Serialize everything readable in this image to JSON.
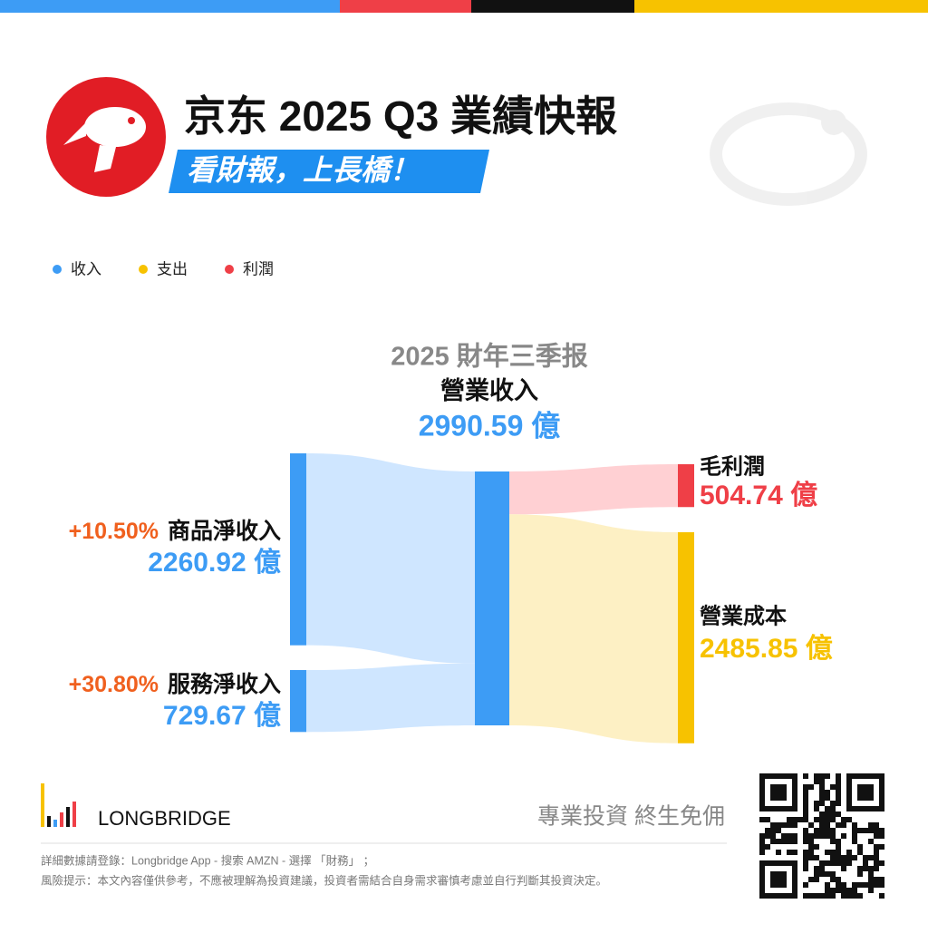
{
  "header": {
    "title": "京东 2025 Q3 業績快報",
    "subtitle": "看財報，上長橋！"
  },
  "chart_data": {
    "type": "sankey",
    "legend": [
      {
        "name": "收入",
        "color": "#3d9cf5"
      },
      {
        "name": "支出",
        "color": "#f7c200"
      },
      {
        "name": "利潤",
        "color": "#ef3f47"
      }
    ],
    "period": "2025 財年三季报",
    "categories": [
      "商品淨收入",
      "服務淨收入",
      "營業收入",
      "毛利潤",
      "營業成本"
    ],
    "values": [
      2260.92,
      729.67,
      2990.59,
      504.74,
      2485.85
    ],
    "value_labels": [
      "2260.92 億",
      "729.67 億",
      "2990.59 億",
      "504.74 億",
      "2485.85 億"
    ],
    "growth": [
      {
        "value": 10.5,
        "label": "+10.50%"
      },
      {
        "value": 30.8,
        "label": "+30.80%"
      }
    ]
  },
  "footer": {
    "brand": "LONGBRIDGE",
    "slogan": "專業投資 終生免佣",
    "notes": [
      "詳細數據請登錄：Longbridge App - 搜索 AMZN - 選擇 「財務」 ；",
      "風險提示：本文內容僅供參考，不應被理解為投資建議，投資者需結合自身需求審慎考慮並自行判斷其投資決定。"
    ]
  }
}
